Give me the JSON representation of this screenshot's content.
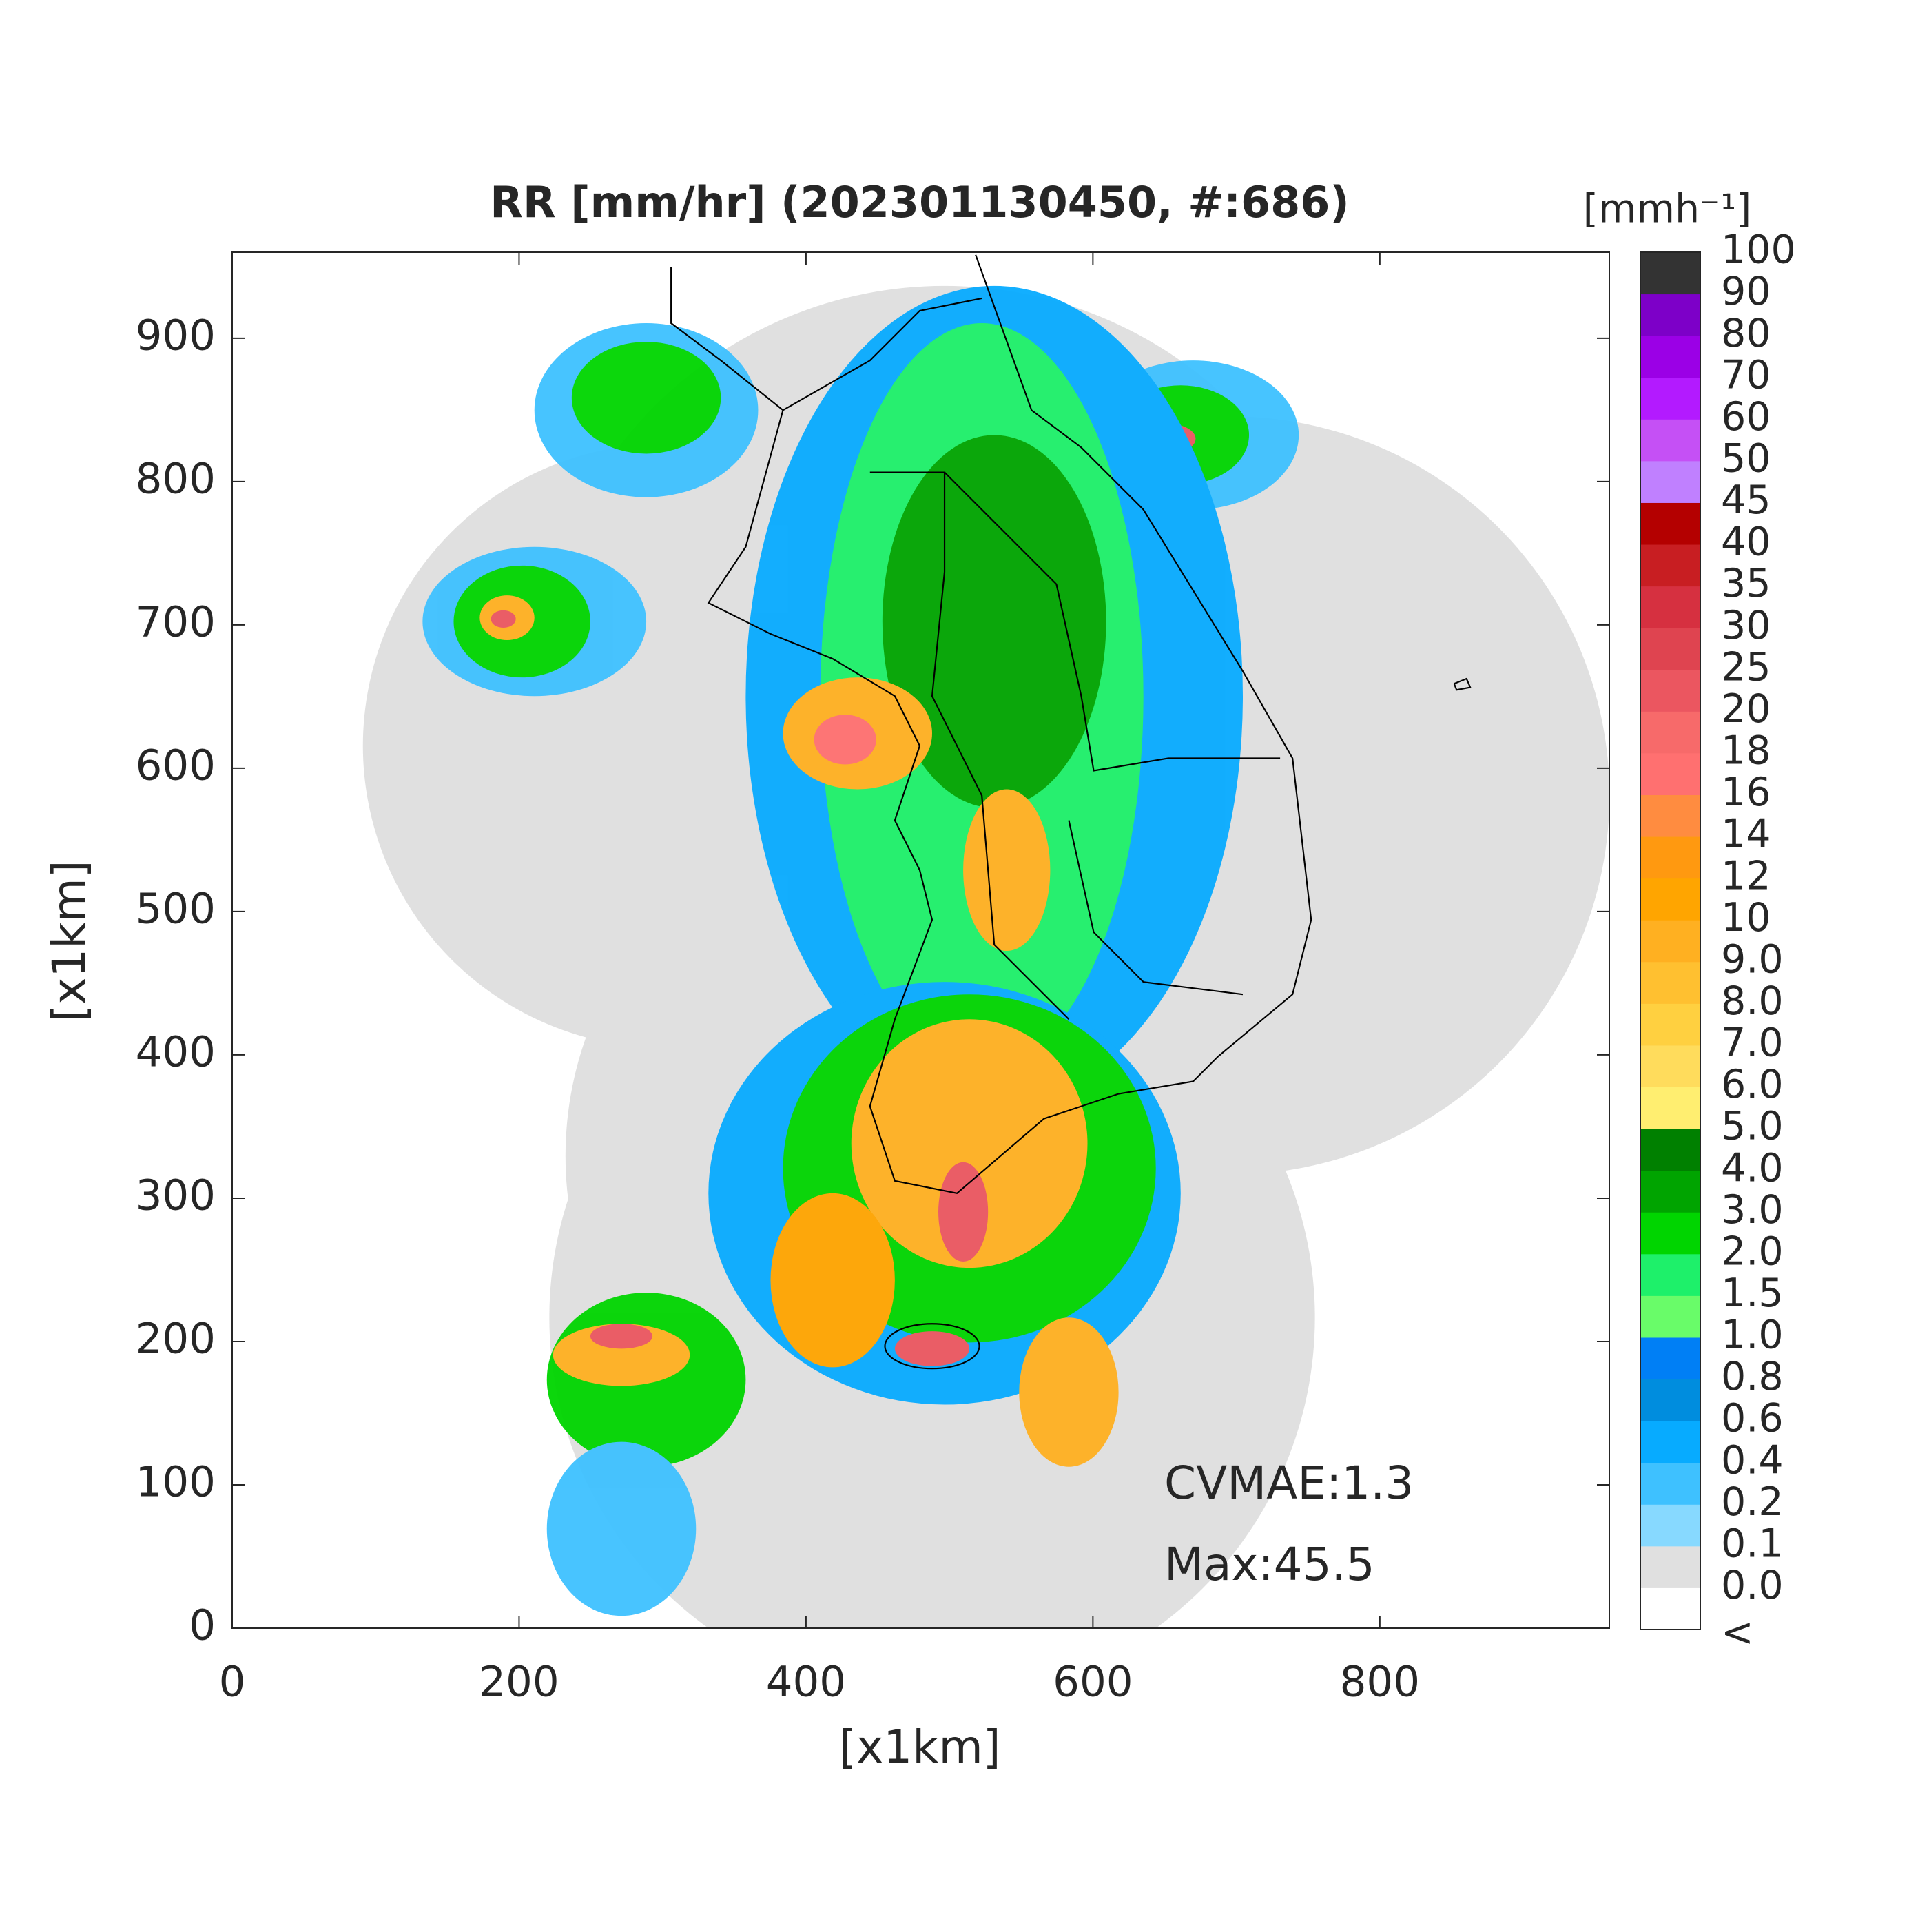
{
  "chart_data": {
    "type": "radar-map",
    "title": "RR [mm/hr] (202301130450, #:686)",
    "x_label": "[x1km]",
    "y_label": "[x1km]",
    "xlim": [
      0,
      960
    ],
    "ylim": [
      0,
      960
    ],
    "xticks": [
      0,
      200,
      400,
      600,
      800
    ],
    "yticks": [
      0,
      100,
      200,
      300,
      400,
      500,
      600,
      700,
      800,
      900
    ],
    "annotations": [
      "CVMAE:1.3",
      "Max:45.5"
    ],
    "colorbar": {
      "units": "[mmh⁻¹]",
      "levels": [
        "<",
        "0.0",
        "0.1",
        "0.2",
        "0.4",
        "0.6",
        "0.8",
        "1.0",
        "1.5",
        "2.0",
        "3.0",
        "4.0",
        "5.0",
        "6.0",
        "7.0",
        "8.0",
        "9.0",
        "10",
        "12",
        "14",
        "16",
        "18",
        "20",
        "25",
        "30",
        "35",
        "40",
        "45",
        "50",
        "60",
        "70",
        "80",
        "90",
        "100"
      ],
      "colors": [
        "#ffffff",
        "#e0e0e0",
        "#87d9ff",
        "#3ec1ff",
        "#07abff",
        "#008dde",
        "#007ff5",
        "#69fc69",
        "#1ef06a",
        "#00d500",
        "#00a400",
        "#008000",
        "#ffee70",
        "#ffdc5c",
        "#ffd040",
        "#ffc030",
        "#ffb021",
        "#ffa500",
        "#ff9910",
        "#ff8c40",
        "#ff7070",
        "#f76a6a",
        "#eb5660",
        "#df4450",
        "#d63040",
        "#c81e22",
        "#b40000",
        "#c080ff",
        "#c550f5",
        "#b31aff",
        "#9b00e6",
        "#7d00c8",
        "#333333"
      ]
    }
  }
}
